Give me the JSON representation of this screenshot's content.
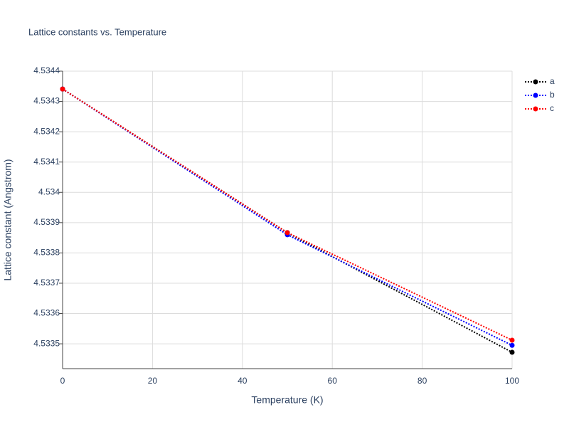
{
  "chart_data": {
    "type": "line",
    "title": "Lattice constants vs. Temperature",
    "x_label": "Temperature (K)",
    "y_label": "Lattice constant (Angstrom)",
    "x": [
      0,
      50,
      100
    ],
    "series": [
      {
        "name": "a",
        "color": "#000000",
        "values": [
          4.534341,
          4.533867,
          4.533472
        ]
      },
      {
        "name": "b",
        "color": "#0000ff",
        "values": [
          4.534341,
          4.53386,
          4.533495
        ]
      },
      {
        "name": "c",
        "color": "#ff0000",
        "values": [
          4.534341,
          4.533867,
          4.533512
        ]
      }
    ],
    "xlim": [
      0,
      100
    ],
    "xticks": [
      0,
      20,
      40,
      60,
      80,
      100
    ],
    "ylim": [
      4.533418,
      4.5344
    ],
    "yticks": [
      4.5335,
      4.5336,
      4.5337,
      4.5338,
      4.5339,
      4.534,
      4.5341,
      4.5342,
      4.5343,
      4.5344
    ],
    "grid": true,
    "legend": "top-right"
  }
}
